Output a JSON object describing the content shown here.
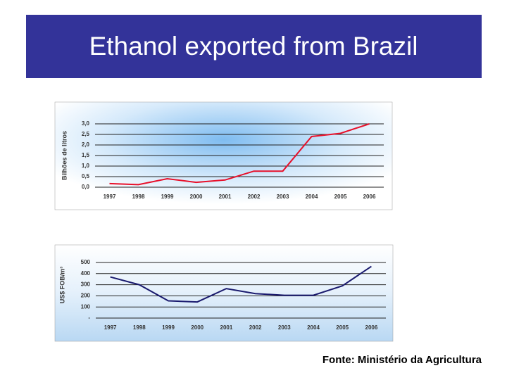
{
  "header": {
    "title": "Ethanol exported from Brazil"
  },
  "chart_data": [
    {
      "type": "line",
      "ylabel": "Bilhões de litros",
      "categories": [
        "1997",
        "1998",
        "1999",
        "2000",
        "2001",
        "2002",
        "2003",
        "2004",
        "2005",
        "2006"
      ],
      "series": [
        {
          "color": "#e8102a",
          "values": [
            0.17,
            0.12,
            0.4,
            0.23,
            0.34,
            0.76,
            0.76,
            2.4,
            2.55,
            3.0
          ]
        }
      ],
      "ylim": [
        0,
        3
      ],
      "yticks": [
        {
          "value": 0,
          "label": "0,0"
        },
        {
          "value": 0.5,
          "label": "0,5"
        },
        {
          "value": 1,
          "label": "1,0"
        },
        {
          "value": 1.5,
          "label": "1,5"
        },
        {
          "value": 2,
          "label": "2,0"
        },
        {
          "value": 2.5,
          "label": "2,5"
        },
        {
          "value": 3,
          "label": "3,0"
        }
      ],
      "grid": true
    },
    {
      "type": "line",
      "ylabel": "US$ FOB/m³",
      "categories": [
        "1997",
        "1998",
        "1999",
        "2000",
        "2001",
        "2002",
        "2003",
        "2004",
        "2005",
        "2006"
      ],
      "series": [
        {
          "color": "#1a1a6e",
          "values": [
            370,
            300,
            155,
            145,
            265,
            220,
            205,
            205,
            290,
            465
          ]
        }
      ],
      "ylim": [
        0,
        500
      ],
      "yticks": [
        {
          "value": 0,
          "label": "-"
        },
        100,
        200,
        300,
        400,
        500
      ],
      "grid": true
    }
  ],
  "source": "Fonte: Ministério da Agricultura"
}
